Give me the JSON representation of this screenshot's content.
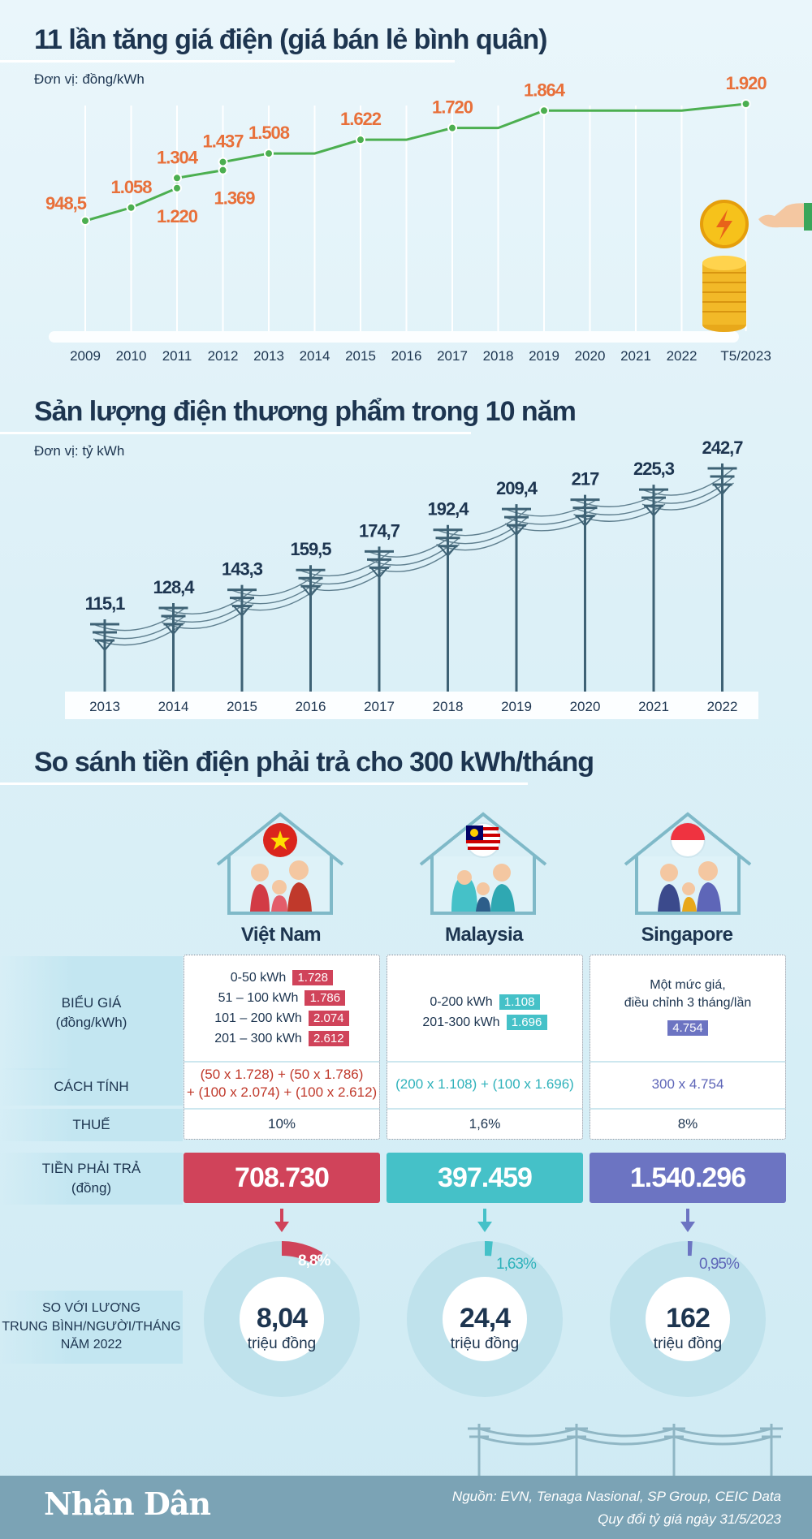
{
  "section1": {
    "title": "11 lần tăng giá điện (giá bán lẻ bình quân)",
    "unit": "Đơn vị: đồng/kWh"
  },
  "section2": {
    "title": "Sản lượng điện thương phẩm trong 10 năm",
    "unit": "Đơn vị: tỷ kWh"
  },
  "section3": {
    "title": "So sánh tiền điện phải trả cho 300 kWh/tháng",
    "row_labels": {
      "tariff": "BIỂU GIÁ\n(đồng/kWh)",
      "method": "CÁCH TÍNH",
      "tax": "THUẾ",
      "pay": "TIỀN PHẢI TRẢ\n(đồng)",
      "salary": "SO VỚI LƯƠNG\nTRUNG BÌNH/NGƯỜI/THÁNG\nNĂM 2022"
    },
    "countries": [
      {
        "name": "Việt Nam",
        "color": "#d0435a",
        "text_color": "#c0392b",
        "tiers": [
          {
            "range": "0-50 kWh",
            "price": "1.728"
          },
          {
            "range": "51 – 100  kWh",
            "price": "1.786"
          },
          {
            "range": "101 – 200 kWh",
            "price": "2.074"
          },
          {
            "range": "201 – 300 kWh",
            "price": "2.612"
          }
        ],
        "note": "",
        "formula_line1": "(50 x 1.728) + (50 x 1.786)",
        "formula_line2": "+ (100 x 2.074) + (100 x 2.612)",
        "tax": "10%",
        "pay": "708.730",
        "salary_value": "8,04",
        "salary_unit": "triệu đồng",
        "share_label": "8,8%",
        "share": 8.8
      },
      {
        "name": "Malaysia",
        "color": "#45c1c8",
        "text_color": "#2fb2bb",
        "tiers": [
          {
            "range": "0-200 kWh",
            "price": "1.108"
          },
          {
            "range": "201-300 kWh",
            "price": "1.696"
          }
        ],
        "note": "",
        "formula_line1": "(200 x 1.108) + (100 x 1.696)",
        "formula_line2": "",
        "tax": "1,6%",
        "pay": "397.459",
        "salary_value": "24,4",
        "salary_unit": "triệu đồng",
        "share_label": "1,63%",
        "share": 1.63
      },
      {
        "name": "Singapore",
        "color": "#6c74c2",
        "text_color": "#5e66b8",
        "tiers": [
          {
            "range": "",
            "price": "4.754"
          }
        ],
        "note": "Một mức giá,\nđiều chỉnh 3 tháng/lần",
        "formula_line1": "300 x 4.754",
        "formula_line2": "",
        "tax": "8%",
        "pay": "1.540.296",
        "salary_value": "162",
        "salary_unit": "triệu đồng",
        "share_label": "0,95%",
        "share": 0.95
      }
    ]
  },
  "footer": {
    "logo": "Nhân Dân",
    "source_line1": "Nguồn: EVN, Tenaga Nasional, SP Group, CEIC Data",
    "source_line2": "Quy đổi tỷ giá ngày 31/5/2023"
  },
  "chart_data": [
    {
      "type": "line",
      "title": "11 lần tăng giá điện (giá bán lẻ bình quân)",
      "ylabel": "Đơn vị: đồng/kWh",
      "categories": [
        "2009",
        "2010",
        "2011",
        "2012",
        "2013",
        "2014",
        "2015",
        "2016",
        "2017",
        "2018",
        "2019",
        "2020",
        "2021",
        "2022",
        "T5/2023"
      ],
      "points": [
        {
          "x": 2009,
          "y": 948.5,
          "label": "948,5"
        },
        {
          "x": 2010,
          "y": 1058,
          "label": "1.058"
        },
        {
          "x": 2011,
          "y": 1220,
          "label": "1.220"
        },
        {
          "x": 2011,
          "y": 1304,
          "label": "1.304"
        },
        {
          "x": 2012,
          "y": 1369,
          "label": "1.369"
        },
        {
          "x": 2012,
          "y": 1437,
          "label": "1.437"
        },
        {
          "x": 2013,
          "y": 1508,
          "label": "1.508"
        },
        {
          "x": 2014,
          "y": 1508,
          "label": ""
        },
        {
          "x": 2015,
          "y": 1622,
          "label": "1.622"
        },
        {
          "x": 2016,
          "y": 1622,
          "label": ""
        },
        {
          "x": 2017,
          "y": 1720,
          "label": "1.720"
        },
        {
          "x": 2018,
          "y": 1720,
          "label": ""
        },
        {
          "x": 2019,
          "y": 1864,
          "label": "1.864"
        },
        {
          "x": 2020,
          "y": 1864,
          "label": ""
        },
        {
          "x": 2021,
          "y": 1864,
          "label": ""
        },
        {
          "x": 2022,
          "y": 1864,
          "label": ""
        },
        {
          "x": 2023.4,
          "y": 1920,
          "label": "1.920"
        }
      ],
      "ylim": [
        900,
        1950
      ],
      "color": "#4caf50",
      "label_color": "#e8703a"
    },
    {
      "type": "bar",
      "title": "Sản lượng điện thương phẩm trong 10 năm",
      "ylabel": "Đơn vị: tỷ kWh",
      "categories": [
        "2013",
        "2014",
        "2015",
        "2016",
        "2017",
        "2018",
        "2019",
        "2020",
        "2021",
        "2022"
      ],
      "values": [
        115.1,
        128.4,
        143.3,
        159.5,
        174.7,
        192.4,
        209.4,
        217,
        225.3,
        242.7
      ],
      "labels": [
        "115,1",
        "128,4",
        "143,3",
        "159,5",
        "174,7",
        "192,4",
        "209,4",
        "217",
        "225,3",
        "242,7"
      ],
      "ylim": [
        60,
        250
      ]
    },
    {
      "type": "pie",
      "title": "So với lương trung bình/người/tháng năm 2022",
      "series": [
        {
          "name": "Việt Nam",
          "values": [
            8.8,
            91.2
          ]
        },
        {
          "name": "Malaysia",
          "values": [
            1.63,
            98.37
          ]
        },
        {
          "name": "Singapore",
          "values": [
            0.95,
            99.05
          ]
        }
      ]
    }
  ]
}
